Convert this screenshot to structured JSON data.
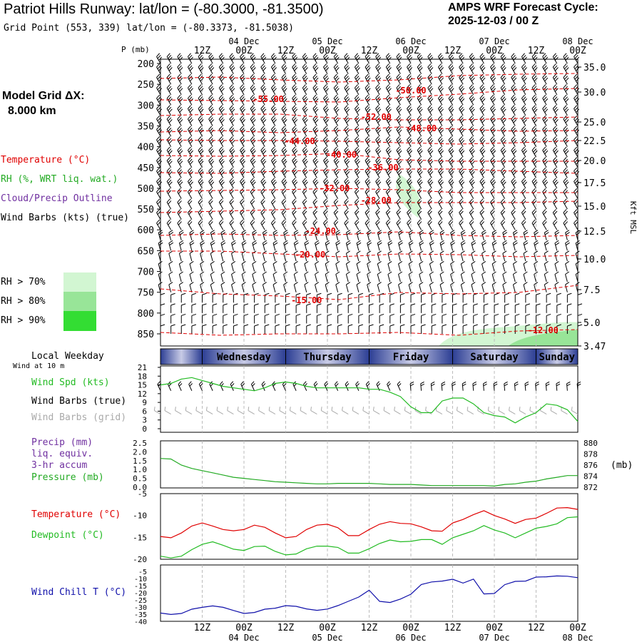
{
  "header": {
    "title": "Patriot Hills Runway:  lat/lon = (-80.3000, -81.3500)",
    "grid_point": "Grid Point (553, 339) lat/lon = (-80.3373, -81.5038)",
    "cycle_line1": "AMPS WRF Forecast Cycle:",
    "cycle_line2": "2025-12-03 / 00  Z"
  },
  "sidebar": {
    "model_grid_label": "Model Grid ΔX:",
    "model_grid_value": "8.000 km",
    "legend_temperature": "Temperature (°C)",
    "legend_rh": "RH (%, WRT liq. wat.)",
    "legend_cloud": "Cloud/Precip Outline",
    "legend_wind": "Wind Barbs (kts) (true)",
    "rh_70": "RH > 70%",
    "rh_80": "RH > 80%",
    "rh_90": "RH > 90%",
    "local_weekday": "Local Weekday",
    "wind_at": "Wind at 10 m",
    "wind_spd": "Wind Spd (kts)",
    "wind_barbs_true": "Wind Barbs (true)",
    "wind_barbs_grid": "Wind Barbs (grid)",
    "precip": "Precip (mm)",
    "liq_equiv": "liq. equiv.",
    "accum": "3-hr accum",
    "pressure": "Pressure (mb)",
    "temperature": "Temperature (°C)",
    "dewpoint": "Dewpoint (°C)",
    "wind_chill": "Wind Chill T (°C)"
  },
  "colors": {
    "temperature": "#e00000",
    "rh": "#22aa22",
    "cloud": "#7030a0",
    "wind_spd": "#22bb22",
    "barbs_grid": "#aaaaaa",
    "wind_chill": "#1010aa",
    "rh70": "#d2f6d2",
    "rh80": "#98e598",
    "rh90": "#33dd33",
    "weekday_dark": "#2c3e94",
    "weekday_light": "#c8cbe6"
  },
  "chart_data": [
    {
      "type": "line",
      "name": "cross-section",
      "xlabel_top": [
        "12Z",
        "00Z",
        "12Z",
        "00Z",
        "12Z",
        "00Z",
        "12Z",
        "00Z",
        "12Z",
        "00Z"
      ],
      "date_labels": [
        "04 Dec",
        "05 Dec",
        "06 Dec",
        "07 Dec",
        "08 Dec"
      ],
      "ylabel": "P (mb)",
      "y_ticks_mb": [
        200,
        250,
        300,
        350,
        400,
        450,
        500,
        550,
        600,
        650,
        700,
        750,
        800,
        850
      ],
      "right_ticks_kft": [
        "35.0",
        "30.0",
        "25.0",
        "22.5",
        "20.0",
        "17.5",
        "15.0",
        "12.5",
        "10.0",
        "7.5",
        "5.0",
        "3.47"
      ],
      "right_label": "Kft MSL",
      "temp_contour_labels": [
        "-55.00",
        "-50.00",
        "-52.00",
        "-48.00",
        "-44.00",
        "-40.00",
        "-36.00",
        "-32.00",
        "-28.00",
        "-24.00",
        "-20.00",
        "-15.00",
        "-12.00"
      ]
    },
    {
      "type": "line",
      "name": "wind-speed",
      "ylabel": "kts",
      "yticks": [
        "21",
        "18",
        "15",
        "12",
        "9",
        "6",
        "3",
        "0"
      ],
      "ylim": [
        0,
        21
      ],
      "x_hours": [
        0,
        3,
        6,
        9,
        12,
        15,
        18,
        21,
        24,
        27,
        30,
        33,
        36,
        39,
        42,
        45,
        48,
        51,
        54,
        57,
        60,
        63,
        66,
        69,
        72,
        75,
        78,
        81,
        84,
        87,
        90,
        93,
        96,
        99,
        102,
        105,
        108,
        111,
        114,
        117,
        120
      ],
      "values": [
        15,
        15.5,
        17,
        17.5,
        16.5,
        15.5,
        14.5,
        14,
        13.5,
        13,
        14,
        15.5,
        16,
        15.5,
        14.5,
        14,
        14,
        14,
        14,
        14,
        13.5,
        13.5,
        12.5,
        11,
        7.5,
        5.5,
        5.5,
        9.5,
        10.5,
        10.5,
        8.5,
        5.5,
        4.5,
        4,
        2,
        4,
        5.5,
        8.5,
        8,
        6.5,
        2.5
      ]
    },
    {
      "type": "line",
      "name": "precip-pressure",
      "left_ticks": [
        "2.5",
        "2.0",
        "1.5",
        "1.0",
        "0.5",
        "0.0"
      ],
      "right_ticks": [
        "880",
        "878",
        "876",
        "874",
        "872"
      ],
      "right_unit": "(mb)",
      "series": [
        {
          "name": "Pressure (mb)",
          "values": [
            877.2,
            877.1,
            876.0,
            875.4,
            875.0,
            874.6,
            874.2,
            873.8,
            873.6,
            873.4,
            873.2,
            873.0,
            872.9,
            872.8,
            872.7,
            872.6,
            872.6,
            872.7,
            872.7,
            872.7,
            872.7,
            872.6,
            872.5,
            872.5,
            872.5,
            872.4,
            872.3,
            872.3,
            872.3,
            872.3,
            872.3,
            872.3,
            872.2,
            872.5,
            872.6,
            872.9,
            873.1,
            873.5,
            873.8,
            874.1,
            874.1
          ]
        }
      ]
    },
    {
      "type": "line",
      "name": "temperature-dewpoint",
      "yticks": [
        "-5",
        "-10",
        "-15",
        "-20"
      ],
      "ylim": [
        -20,
        -5
      ],
      "series": [
        {
          "name": "Temperature (°C)",
          "values": [
            -14.8,
            -15.1,
            -14,
            -12.4,
            -11.7,
            -12.4,
            -13.2,
            -13.5,
            -13.2,
            -12.2,
            -12.7,
            -14,
            -15.1,
            -14.8,
            -13.2,
            -12.2,
            -12,
            -12.8,
            -14.6,
            -14.6,
            -13.2,
            -12,
            -11.4,
            -11.8,
            -11.9,
            -12.6,
            -13.5,
            -13.6,
            -11.7,
            -10.9,
            -9.8,
            -8.9,
            -10,
            -10.8,
            -11.8,
            -10.9,
            -10.6,
            -9.5,
            -8.3,
            -8.2,
            -8.6
          ]
        },
        {
          "name": "Dewpoint (°C)",
          "values": [
            -19.3,
            -19.7,
            -19.3,
            -17.8,
            -16.6,
            -16,
            -16.8,
            -17.7,
            -18,
            -17.1,
            -17,
            -18.2,
            -19,
            -18.8,
            -17.6,
            -17,
            -17,
            -17.3,
            -18.6,
            -18.6,
            -17.6,
            -16.4,
            -15.6,
            -16,
            -15.9,
            -15.5,
            -15.5,
            -16.6,
            -15.1,
            -14.3,
            -13.5,
            -12.3,
            -13.3,
            -14,
            -15.1,
            -14,
            -12.9,
            -12.5,
            -11.9,
            -10.5,
            -10.3
          ]
        }
      ]
    },
    {
      "type": "line",
      "name": "wind-chill",
      "yticks": [
        "-5",
        "-10",
        "-15",
        "-20",
        "-25",
        "-30",
        "-35",
        "-40"
      ],
      "ylim": [
        -40,
        -5
      ],
      "series": [
        {
          "name": "Wind Chill T (°C)",
          "values": [
            -34.2,
            -35.2,
            -34.5,
            -31.5,
            -30.2,
            -29.2,
            -30.2,
            -32.4,
            -34.5,
            -33.8,
            -31.5,
            -30.8,
            -29,
            -29.5,
            -31.3,
            -32.3,
            -31.4,
            -29,
            -26,
            -23,
            -18.2,
            -26,
            -26.8,
            -24.4,
            -21,
            -14.2,
            -12.4,
            -11.8,
            -10.5,
            -13.2,
            -10.4,
            -20.8,
            -20.5,
            -14.3,
            -12,
            -11.8,
            -9,
            -8.8,
            -8.2,
            -8.4,
            -9.4
          ]
        }
      ]
    }
  ],
  "weekdays": [
    "Wednesday",
    "Thursday",
    "Friday",
    "Saturday",
    "Sunday"
  ]
}
